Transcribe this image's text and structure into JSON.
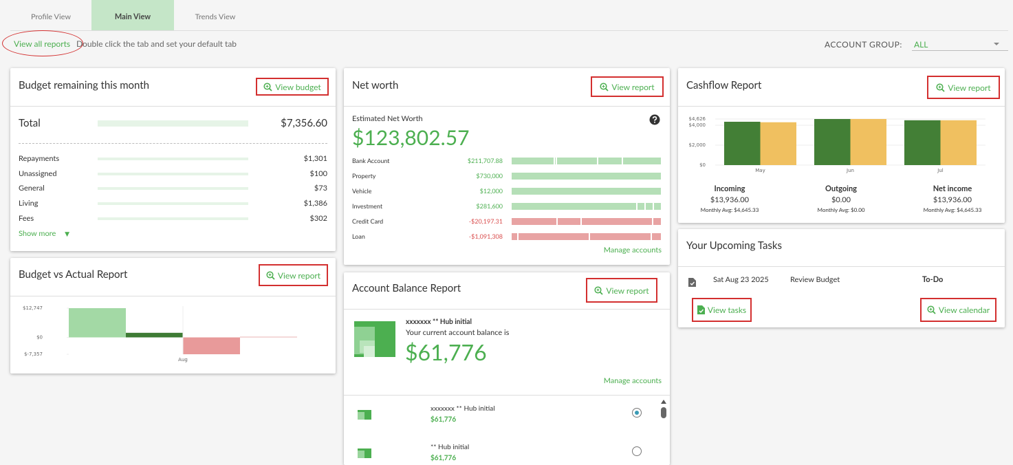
{
  "tabs": [
    "Profile View",
    "Main View",
    "Trends View"
  ],
  "toolbar": {
    "view_all": "View all reports",
    "hint": "Double click the tab and set your default tab",
    "account_group_label": "ACCOUNT GROUP:",
    "account_group_value": "ALL"
  },
  "budget": {
    "title": "Budget remaining this month",
    "button": "View budget",
    "total_label": "Total",
    "total_value": "$7,356.60",
    "rows": [
      {
        "label": "Repayments",
        "value": "$1,301"
      },
      {
        "label": "Unassigned",
        "value": "$100"
      },
      {
        "label": "General",
        "value": "$73"
      },
      {
        "label": "Living",
        "value": "$1,386"
      },
      {
        "label": "Fees",
        "value": "$302"
      }
    ],
    "show_more": "Show more"
  },
  "budget_vs_actual": {
    "title": "Budget vs Actual Report",
    "button": "View report"
  },
  "net_worth": {
    "title": "Net worth",
    "button": "View report",
    "label": "Estimated Net Worth",
    "value": "$123,802.57",
    "rows": [
      {
        "label": "Bank Account",
        "value": "$211,707.88"
      },
      {
        "label": "Property",
        "value": "$730,000"
      },
      {
        "label": "Vehicle",
        "value": "$12,000"
      },
      {
        "label": "Investment",
        "value": "$281,600"
      },
      {
        "label": "Credit Card",
        "value": "-$20,197.31"
      },
      {
        "label": "Loan",
        "value": "-$1,091,308"
      }
    ],
    "manage": "Manage accounts"
  },
  "account_balance": {
    "title": "Account Balance Report",
    "button": "View report",
    "account_name": "xxxxxxx ** Hub initial",
    "subtitle": "Your current account balance is",
    "balance": "$61,776",
    "manage": "Manage accounts",
    "accounts": [
      {
        "name": "xxxxxxx ** Hub initial",
        "value": "$61,776"
      },
      {
        "name": "** Hub initial",
        "value": "$61,776"
      }
    ]
  },
  "cashflow": {
    "title": "Cashflow Report",
    "button": "View report",
    "summary": [
      {
        "label": "Incoming",
        "value": "$13,936.00",
        "avg": "Monthly Avg: $4,645.33"
      },
      {
        "label": "Outgoing",
        "value": "$0.00",
        "avg": "Monthly Avg: $0.00"
      },
      {
        "label": "Net income",
        "value": "$13,936.00",
        "avg": "Monthly Avg: $4,645.33"
      }
    ]
  },
  "tasks": {
    "title": "Your Upcoming Tasks",
    "items": [
      {
        "date": "Sat Aug 23 2025",
        "name": "Review Budget",
        "status": "To-Do"
      }
    ],
    "view_tasks": "View tasks",
    "view_calendar": "View calendar"
  },
  "chart_data": [
    {
      "type": "bar",
      "categories": [
        "Aug"
      ],
      "series": [
        {
          "color": "#a3d9a5",
          "values": [
            12747
          ]
        },
        {
          "color": "#3e7b34",
          "values": [
            2000
          ]
        },
        {
          "color": "#e89a9a",
          "values": [
            -7357
          ]
        },
        {
          "color": "#e8b4b4",
          "values": [
            300
          ]
        }
      ],
      "ylim": [
        -7357,
        12747
      ],
      "yticks": [
        {
          "value": 12747,
          "label": "$12,747"
        },
        {
          "value": 0,
          "label": "$0"
        },
        {
          "value": -7357,
          "label": "$-7,357"
        }
      ]
    },
    {
      "type": "bar",
      "categories": [
        "May",
        "Jun",
        "Jul"
      ],
      "series": [
        {
          "color": "#437f36",
          "values": [
            4350,
            4626,
            4500
          ]
        },
        {
          "color": "#f0c060",
          "values": [
            4300,
            4626,
            4500
          ]
        }
      ],
      "ylim": [
        0,
        4626
      ],
      "yticks": [
        {
          "value": 0,
          "label": "$0"
        },
        {
          "value": 2000,
          "label": "$2,000"
        },
        {
          "value": 4000,
          "label": "$4,000"
        },
        {
          "value": 4626,
          "label": "$4,626"
        }
      ],
      "grid": true
    }
  ]
}
